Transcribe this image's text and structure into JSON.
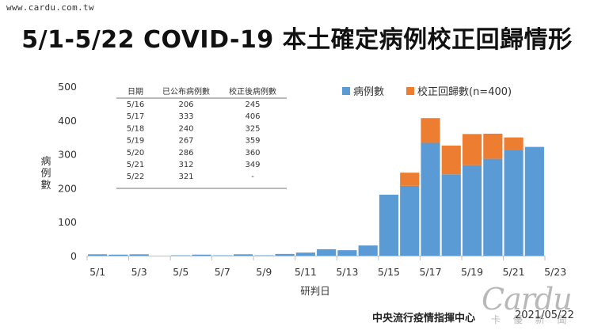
{
  "watermark": "www.cardu.com.tw",
  "title": "5/1-5/22 COVID-19 本土確定病例校正回歸情形",
  "source": "中央流行疫情指揮中心",
  "date": "2021/05/22",
  "logo_text": "Cardu",
  "logo_sub": "卡 優 新 聞",
  "colors": {
    "base": "#5b9bd5",
    "correction": "#ed7d31"
  },
  "chart_data": {
    "type": "bar",
    "stacked": true,
    "xlabel": "研判日",
    "ylabel": "病例數",
    "ylim": [
      0,
      500
    ],
    "yticks": [
      0,
      100,
      200,
      300,
      400,
      500
    ],
    "grid": false,
    "legend_position": "top-right",
    "categories": [
      "5/1",
      "5/2",
      "5/3",
      "5/4",
      "5/5",
      "5/6",
      "5/7",
      "5/8",
      "5/9",
      "5/10",
      "5/11",
      "5/12",
      "5/13",
      "5/14",
      "5/15",
      "5/16",
      "5/17",
      "5/18",
      "5/19",
      "5/20",
      "5/21",
      "5/22"
    ],
    "xtick_labels": [
      "5/1",
      "5/3",
      "5/5",
      "5/7",
      "5/9",
      "5/11",
      "5/13",
      "5/15",
      "5/17",
      "5/19",
      "5/21",
      "5/23"
    ],
    "series": [
      {
        "name": "病例數",
        "values": [
          4,
          3,
          4,
          0,
          1,
          3,
          1,
          4,
          1,
          5,
          9,
          19,
          16,
          30,
          180,
          206,
          333,
          240,
          267,
          286,
          312,
          321
        ]
      },
      {
        "name": "校正回歸數(n=400)",
        "values": [
          0,
          0,
          0,
          0,
          0,
          0,
          0,
          0,
          0,
          0,
          0,
          0,
          0,
          0,
          0,
          39,
          73,
          85,
          92,
          74,
          37,
          0
        ]
      }
    ],
    "table": {
      "headers": [
        "日期",
        "已公布病例數",
        "校正後病例數"
      ],
      "rows": [
        [
          "5/16",
          "206",
          "245"
        ],
        [
          "5/17",
          "333",
          "406"
        ],
        [
          "5/18",
          "240",
          "325"
        ],
        [
          "5/19",
          "267",
          "359"
        ],
        [
          "5/20",
          "286",
          "360"
        ],
        [
          "5/21",
          "312",
          "349"
        ],
        [
          "5/22",
          "321",
          "-"
        ]
      ]
    }
  }
}
